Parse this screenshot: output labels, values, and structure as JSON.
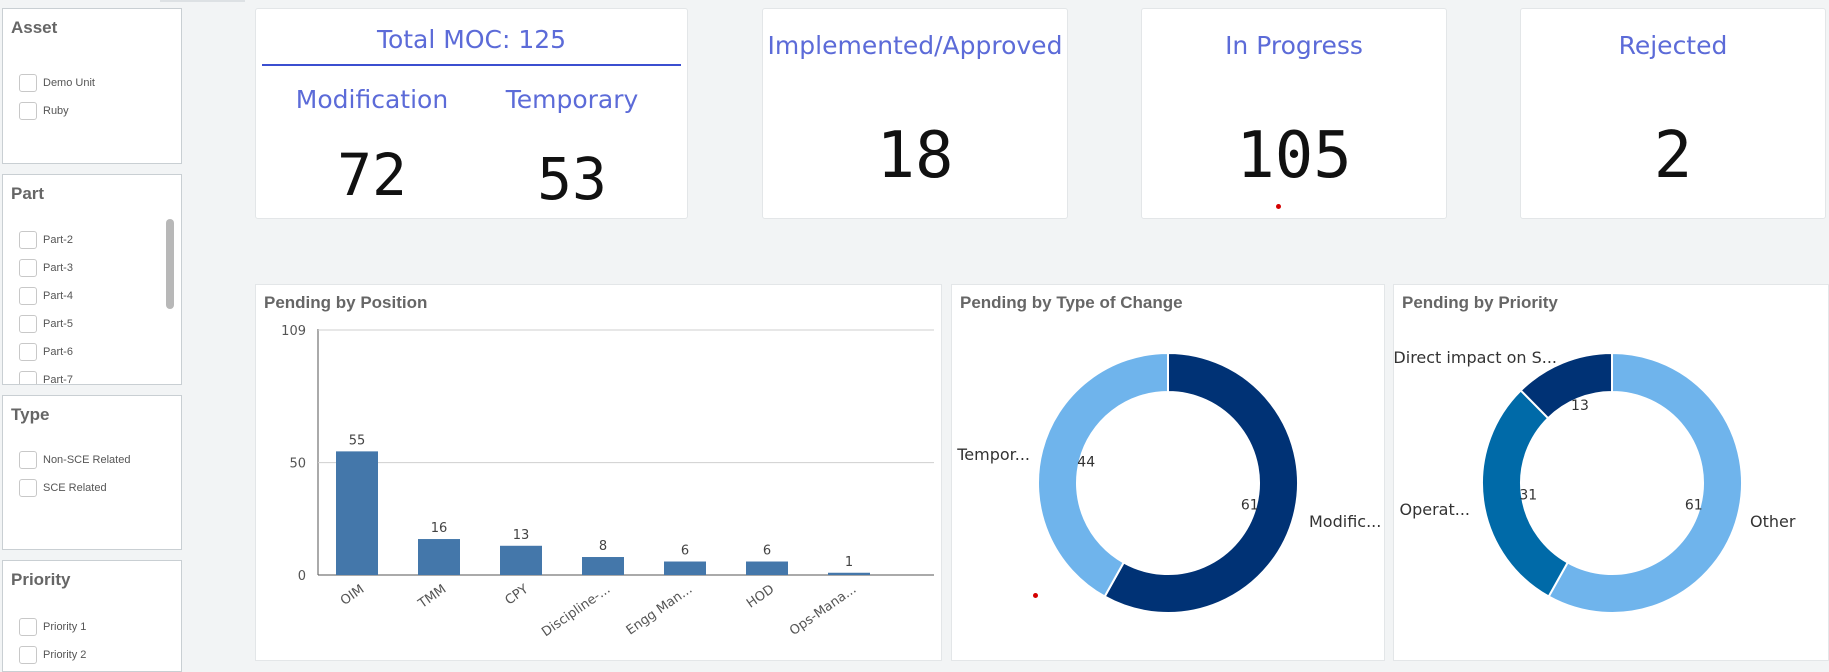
{
  "filters": [
    {
      "title": "Asset",
      "options": [
        "Demo Unit",
        "Ruby"
      ]
    },
    {
      "title": "Part",
      "options": [
        "Part-2",
        "Part-3",
        "Part-4",
        "Part-5",
        "Part-6",
        "Part-7"
      ]
    },
    {
      "title": "Type",
      "options": [
        "Non-SCE Related",
        "SCE Related"
      ]
    },
    {
      "title": "Priority",
      "options": [
        "Priority 1",
        "Priority 2"
      ]
    }
  ],
  "kpis": {
    "total": {
      "label": "Total MOC: 125",
      "modification_label": "Modification",
      "modification_value": "72",
      "temporary_label": "Temporary",
      "temporary_value": "53"
    },
    "implemented": {
      "label": "Implemented/Approved",
      "value": "18"
    },
    "in_progress": {
      "label": "In Progress",
      "value": "105"
    },
    "rejected": {
      "label": "Rejected",
      "value": "2"
    }
  },
  "panels": {
    "position": {
      "title": "Pending by Position"
    },
    "type_of_change": {
      "title": "Pending by Type of Change"
    },
    "priority": {
      "title": "Pending by Priority"
    }
  },
  "colors": {
    "accent": "#5c6bd8",
    "bar": "#4477aa",
    "dark_blue": "#003275",
    "mid_blue": "#006aa8",
    "light_blue": "#6fb4ec"
  },
  "chart_data": [
    {
      "type": "bar",
      "title": "Pending by Position",
      "categories": [
        "OIM",
        "TMM",
        "CPY",
        "Discipline-...",
        "Engg Man...",
        "HOD",
        "Ops-Mana..."
      ],
      "values": [
        55,
        16,
        13,
        8,
        6,
        6,
        1
      ],
      "yticks": [
        0,
        50,
        109
      ],
      "ylim": [
        0,
        109
      ]
    },
    {
      "type": "pie",
      "title": "Pending by Type of Change",
      "labels": [
        "Modific...",
        "Tempor..."
      ],
      "values": [
        61,
        44
      ],
      "colors": [
        "#003275",
        "#6fb4ec"
      ]
    },
    {
      "type": "pie",
      "title": "Pending by Priority",
      "labels": [
        "Other",
        "Operat...",
        "Direct impact on S..."
      ],
      "values": [
        61,
        31,
        13
      ],
      "colors": [
        "#6fb4ec",
        "#006aa8",
        "#003275"
      ]
    }
  ]
}
